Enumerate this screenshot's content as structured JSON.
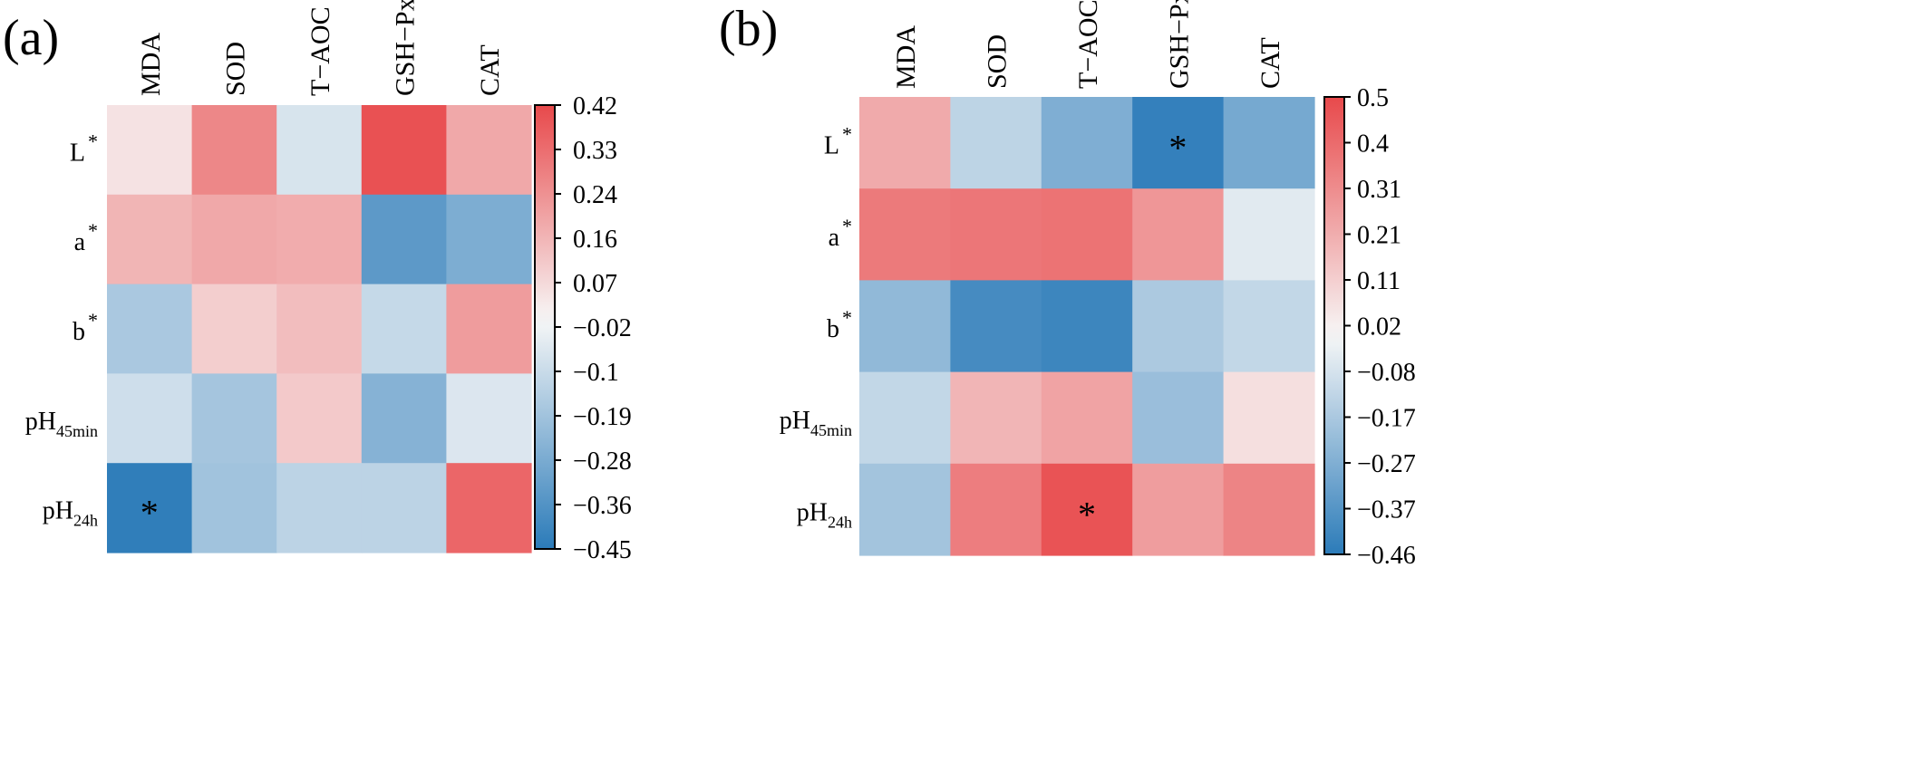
{
  "chart_data": [
    {
      "type": "heatmap",
      "panel_label": "(a)",
      "columns": [
        "MDA",
        "SOD",
        "T−AOC",
        "GSH−Px",
        "CAT"
      ],
      "rows": [
        {
          "base": "L",
          "sup": "*",
          "sub": ""
        },
        {
          "base": "a",
          "sup": "*",
          "sub": ""
        },
        {
          "base": "b",
          "sup": "*",
          "sub": ""
        },
        {
          "base": "pH",
          "sup": "",
          "sub": "45min"
        },
        {
          "base": "pH",
          "sup": "",
          "sub": "24h"
        }
      ],
      "values": [
        [
          0.05,
          0.27,
          -0.07,
          0.4,
          0.19
        ],
        [
          0.16,
          0.19,
          0.18,
          -0.34,
          -0.27
        ],
        [
          -0.17,
          0.1,
          0.14,
          -0.11,
          0.22
        ],
        [
          -0.09,
          -0.18,
          0.11,
          -0.25,
          -0.06
        ],
        [
          -0.44,
          -0.19,
          -0.13,
          -0.13,
          0.35
        ]
      ],
      "significance": [
        [
          "",
          "",
          "",
          "",
          ""
        ],
        [
          "",
          "",
          "",
          "",
          ""
        ],
        [
          "",
          "",
          "",
          "",
          ""
        ],
        [
          "",
          "",
          "",
          "",
          ""
        ],
        [
          "*",
          "",
          "",
          "",
          ""
        ]
      ],
      "colorbar": {
        "min": -0.45,
        "max": 0.42,
        "ticks": [
          "0.42",
          "0.33",
          "0.24",
          "0.16",
          "0.07",
          "−0.02",
          "−0.1",
          "−0.19",
          "−0.28",
          "−0.36",
          "−0.45"
        ]
      }
    },
    {
      "type": "heatmap",
      "panel_label": "(b)",
      "columns": [
        "MDA",
        "SOD",
        "T−AOC",
        "GSH−Px",
        "CAT"
      ],
      "rows": [
        {
          "base": "L",
          "sup": "*",
          "sub": ""
        },
        {
          "base": "a",
          "sup": "*",
          "sub": ""
        },
        {
          "base": "b",
          "sup": "*",
          "sub": ""
        },
        {
          "base": "pH",
          "sup": "",
          "sub": "45min"
        },
        {
          "base": "pH",
          "sup": "",
          "sub": "24h"
        }
      ],
      "values": [
        [
          0.22,
          -0.13,
          -0.27,
          -0.44,
          -0.29
        ],
        [
          0.36,
          0.37,
          0.38,
          0.28,
          -0.05
        ],
        [
          -0.23,
          -0.4,
          -0.42,
          -0.17,
          -0.12
        ],
        [
          -0.12,
          0.19,
          0.24,
          -0.21,
          0.07
        ],
        [
          -0.19,
          0.35,
          0.47,
          0.26,
          0.33
        ]
      ],
      "significance": [
        [
          "",
          "",
          "",
          "*",
          ""
        ],
        [
          "",
          "",
          "",
          "",
          ""
        ],
        [
          "",
          "",
          "",
          "",
          ""
        ],
        [
          "",
          "",
          "",
          "",
          ""
        ],
        [
          "",
          "",
          "*",
          "",
          ""
        ]
      ],
      "colorbar": {
        "min": -0.46,
        "max": 0.5,
        "ticks": [
          "0.5",
          "0.4",
          "0.31",
          "0.21",
          "0.11",
          "0.02",
          "−0.08",
          "−0.17",
          "−0.27",
          "−0.37",
          "−0.46"
        ]
      }
    }
  ],
  "colors": {
    "negative": "#2b7bb9",
    "neutral": "#f7f7f7",
    "positive": "#e8494b"
  }
}
